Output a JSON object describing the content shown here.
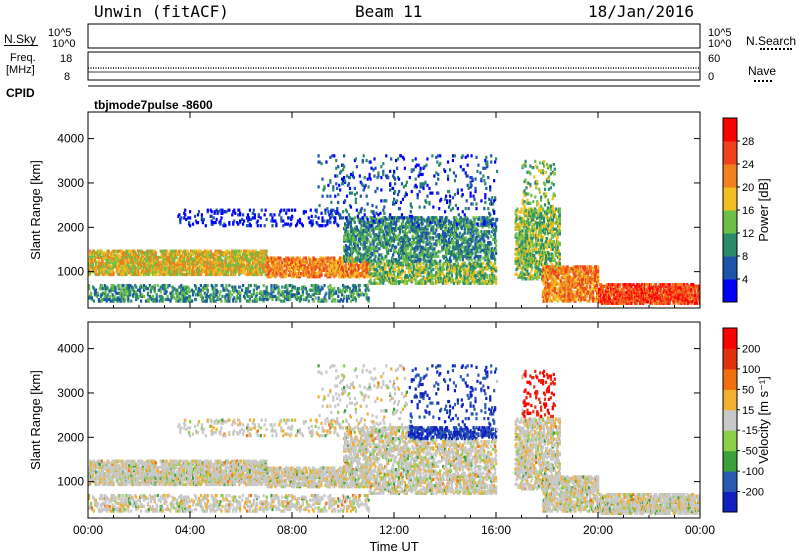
{
  "header": {
    "station": "Unwin (fitACF)",
    "beam": "Beam 11",
    "date": "18/Jan/2016"
  },
  "top_strip": {
    "nsky_label": "N.Sky",
    "nsky_ticks": [
      "10^5",
      "10^0"
    ],
    "nsearch_label": "N.Search",
    "freq_label": "Freq.",
    "freq_unit": "[MHz]",
    "freq_ticks": [
      "18",
      "8"
    ],
    "nave_ticks": [
      "60",
      "0"
    ],
    "nave_label": "Nave",
    "cpid_label": "CPID",
    "cpid_value": "tbjmode7pulse -8600"
  },
  "chart_data": [
    {
      "type": "heatmap",
      "name": "power",
      "ylabel": "Slant Range [km]",
      "yticks": [
        "1000",
        "2000",
        "3000",
        "4000"
      ],
      "ylim": [
        180,
        4600
      ],
      "colorbar_label": "Power [dB]",
      "colorbar_ticks": [
        "28",
        "24",
        "20",
        "16",
        "12",
        "8",
        "4"
      ],
      "colors": [
        "#0000ff",
        "#1b56a8",
        "#2a8a6a",
        "#6bbf4a",
        "#f0c020",
        "#f08020",
        "#f04020",
        "#ff0000"
      ],
      "description_values": {
        "main_band_km": [
          900,
          1450
        ],
        "echo_power_db_range": [
          4,
          30
        ]
      }
    },
    {
      "type": "heatmap",
      "name": "velocity",
      "ylabel": "Slant Range [km]",
      "yticks": [
        "1000",
        "2000",
        "3000",
        "4000"
      ],
      "ylim": [
        180,
        4600
      ],
      "colorbar_label": "Velocity [m s⁻¹]",
      "colorbar_ticks": [
        "200",
        "100",
        "50",
        "15",
        "-15",
        "-50",
        "-100",
        "-200"
      ],
      "colors": [
        "#1020c0",
        "#2a5ab0",
        "#3aa03a",
        "#8ad04a",
        "#c8c8c8",
        "#f0b030",
        "#f07010",
        "#e03010",
        "#ff0000"
      ]
    }
  ],
  "xaxis": {
    "xlabel": "Time UT",
    "xticks": [
      "00:00",
      "04:00",
      "08:00",
      "12:00",
      "16:00",
      "20:00",
      "00:00"
    ]
  }
}
